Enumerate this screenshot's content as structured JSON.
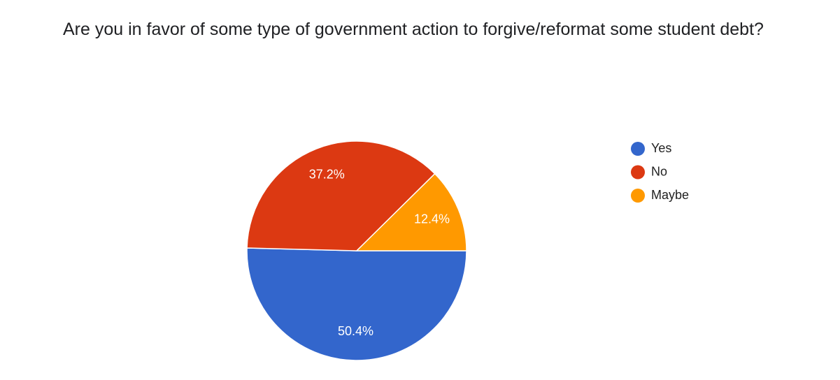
{
  "chart_data": {
    "type": "pie",
    "title": "Are you in favor of some type of government action to forgive/reformat some student debt?",
    "categories": [
      "Yes",
      "No",
      "Maybe"
    ],
    "values": [
      50.4,
      37.2,
      12.4
    ],
    "value_labels": [
      "50.4%",
      "37.2%",
      "12.4%"
    ],
    "colors": [
      "#3366cc",
      "#dc3912",
      "#ff9900"
    ]
  }
}
